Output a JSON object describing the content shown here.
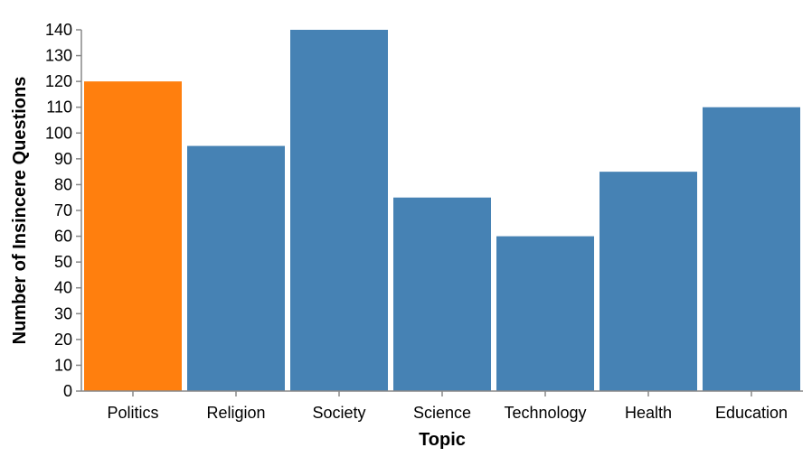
{
  "chart_data": {
    "type": "bar",
    "categories": [
      "Politics",
      "Religion",
      "Society",
      "Science",
      "Technology",
      "Health",
      "Education"
    ],
    "values": [
      120,
      95,
      140,
      75,
      60,
      85,
      110
    ],
    "highlight_category": "Politics",
    "xlabel": "Topic",
    "ylabel": "Number of Insincere Questions",
    "ylim": [
      0,
      140
    ],
    "yticks": [
      0,
      10,
      20,
      30,
      40,
      50,
      60,
      70,
      80,
      90,
      100,
      110,
      120,
      130,
      140
    ],
    "grid": false,
    "colors": {
      "bar": "#4682b4",
      "highlight": "#ff7f0e"
    }
  }
}
